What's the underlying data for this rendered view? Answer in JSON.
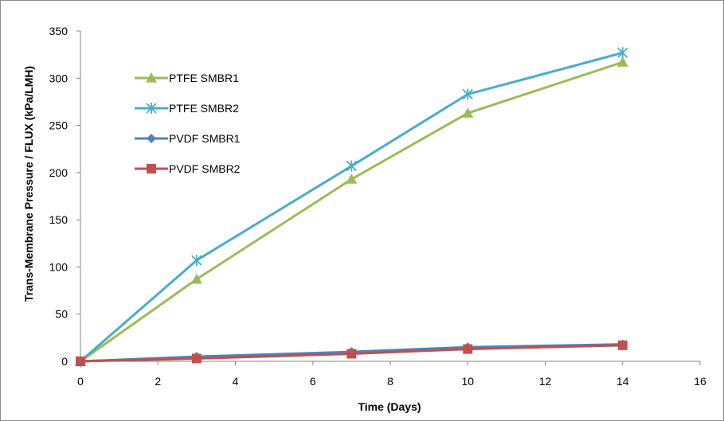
{
  "chart_data": {
    "type": "line",
    "title": "",
    "xlabel": "Time (Days)",
    "ylabel": "Trans-Membrane Pressure / FLUX (kPa/LMH)",
    "xlim": [
      0,
      16
    ],
    "ylim": [
      0,
      350
    ],
    "xticks": [
      0,
      2,
      4,
      6,
      8,
      10,
      12,
      14,
      16
    ],
    "yticks": [
      0,
      50,
      100,
      150,
      200,
      250,
      300,
      350
    ],
    "grid": false,
    "legend_position": "top-left",
    "series": [
      {
        "name": "PTFE SMBR1",
        "color": "#9bbb59",
        "marker": "triangle",
        "x": [
          0,
          3,
          7,
          10,
          14
        ],
        "y": [
          0,
          87,
          193,
          263,
          317
        ]
      },
      {
        "name": "PTFE SMBR2",
        "color": "#4bacc6",
        "marker": "star",
        "x": [
          0,
          3,
          7,
          10,
          14
        ],
        "y": [
          0,
          107,
          207,
          283,
          327
        ]
      },
      {
        "name": "PVDF SMBR1",
        "color": "#4f81bd",
        "marker": "diamond",
        "x": [
          0,
          3,
          7,
          10,
          14
        ],
        "y": [
          0,
          5,
          10,
          15,
          18
        ]
      },
      {
        "name": "PVDF SMBR2",
        "color": "#c0504d",
        "marker": "square",
        "x": [
          0,
          3,
          7,
          10,
          14
        ],
        "y": [
          0,
          3,
          8,
          13,
          17
        ]
      }
    ]
  }
}
